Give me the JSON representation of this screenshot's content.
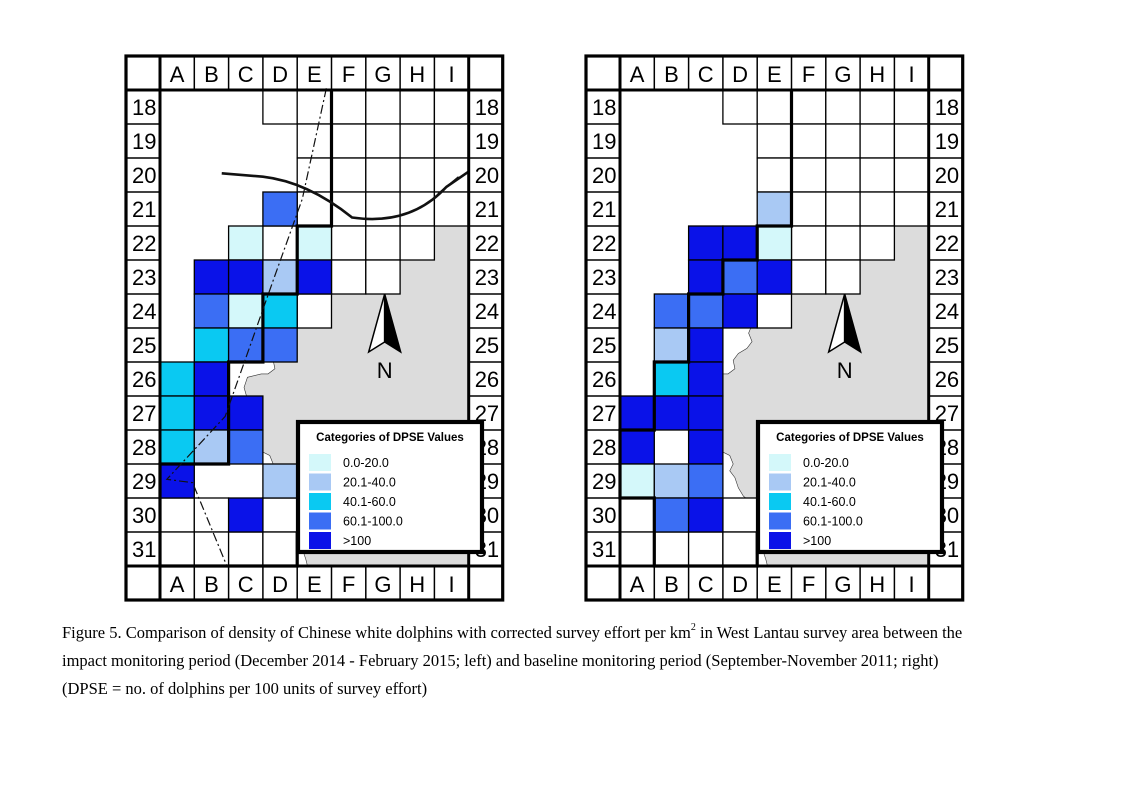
{
  "legend": {
    "title": "Categories of DPSE Values",
    "categories": [
      {
        "label": "0.0-20.0",
        "color": "#d4f8fa"
      },
      {
        "label": "20.1-40.0",
        "color": "#a9c9f4"
      },
      {
        "label": "40.1-60.0",
        "color": "#0ac9f2"
      },
      {
        "label": "60.1-100.0",
        "color": "#3b6ef4"
      },
      {
        "label": ">100",
        "color": "#0a12e8"
      }
    ]
  },
  "grid": {
    "columns": [
      "A",
      "B",
      "C",
      "D",
      "E",
      "F",
      "G",
      "H",
      "I"
    ],
    "rows": [
      "18",
      "19",
      "20",
      "21",
      "22",
      "23",
      "24",
      "25",
      "26",
      "27",
      "28",
      "29",
      "30",
      "31"
    ]
  },
  "north_label": "N",
  "colors": {
    "land": "#dcdcdc",
    "line": "#000000"
  },
  "maps": [
    {
      "id": "left",
      "period": "impact monitoring period (December 2014 - February 2015)",
      "cells": {
        "D21": 3,
        "C22": 0,
        "E22": 0,
        "B23": 4,
        "C23": 4,
        "D23": 1,
        "E23": 4,
        "B24": 3,
        "C24": 0,
        "D24": 2,
        "B25": 2,
        "C25": 3,
        "D25": 3,
        "A26": 2,
        "B26": 4,
        "A27": 2,
        "B27": 4,
        "C27": 4,
        "A28": 2,
        "B28": 1,
        "C28": 3,
        "A29": 4,
        "D29": 1,
        "C30": 4
      }
    },
    {
      "id": "right",
      "period": "baseline monitoring period (September-November 2011)",
      "cells": {
        "E21": 1,
        "C22": 4,
        "D22": 4,
        "E22": 0,
        "C23": 4,
        "D23": 3,
        "E23": 4,
        "B24": 3,
        "C24": 3,
        "D24": 4,
        "B25": 1,
        "C25": 4,
        "B26": 2,
        "C26": 4,
        "A27": 4,
        "B27": 4,
        "C27": 4,
        "A28": 4,
        "C28": 4,
        "A29": 0,
        "B29": 1,
        "C29": 3,
        "B30": 3,
        "C30": 4
      }
    }
  ],
  "caption": {
    "line1_a": "Figure 5.  Comparison of density of Chinese white dolphins with corrected survey effort per km",
    "line1_sup": "2",
    "line1_b": " in West Lantau survey area between the",
    "line2": "impact monitoring period (December 2014 - February 2015; left) and baseline monitoring period (September-November 2011; right)",
    "line3": "(DPSE = no. of dolphins per 100 units of survey effort)"
  }
}
